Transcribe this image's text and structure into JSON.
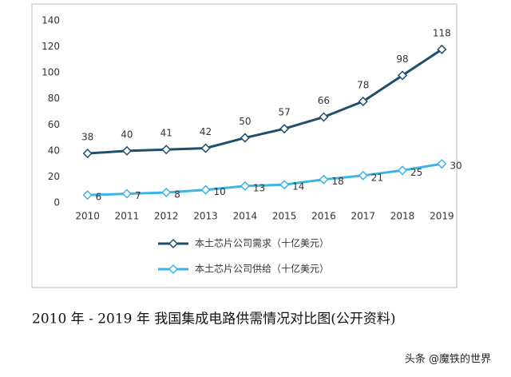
{
  "chart_data": {
    "type": "line",
    "categories": [
      "2010",
      "2011",
      "2012",
      "2013",
      "2014",
      "2015",
      "2016",
      "2017",
      "2018",
      "2019"
    ],
    "series": [
      {
        "name": "本土芯片公司需求（十亿美元）",
        "color": "#1f4e6b",
        "values": [
          38,
          40,
          41,
          42,
          50,
          57,
          66,
          78,
          98,
          118
        ]
      },
      {
        "name": "本土芯片公司供给（十亿美元）",
        "color": "#3cb4e5",
        "values": [
          6,
          7,
          8,
          10,
          13,
          14,
          18,
          21,
          25,
          30
        ]
      }
    ],
    "ylim": [
      0,
      140
    ],
    "yticks": [
      0,
      20,
      40,
      60,
      80,
      100,
      120,
      140
    ],
    "grid": false,
    "legend": "bottom"
  },
  "caption": "2010 年 - 2019 年  我国集成电路供需情况对比图(公开资料)",
  "watermark": "头条 @魔铁的世界"
}
